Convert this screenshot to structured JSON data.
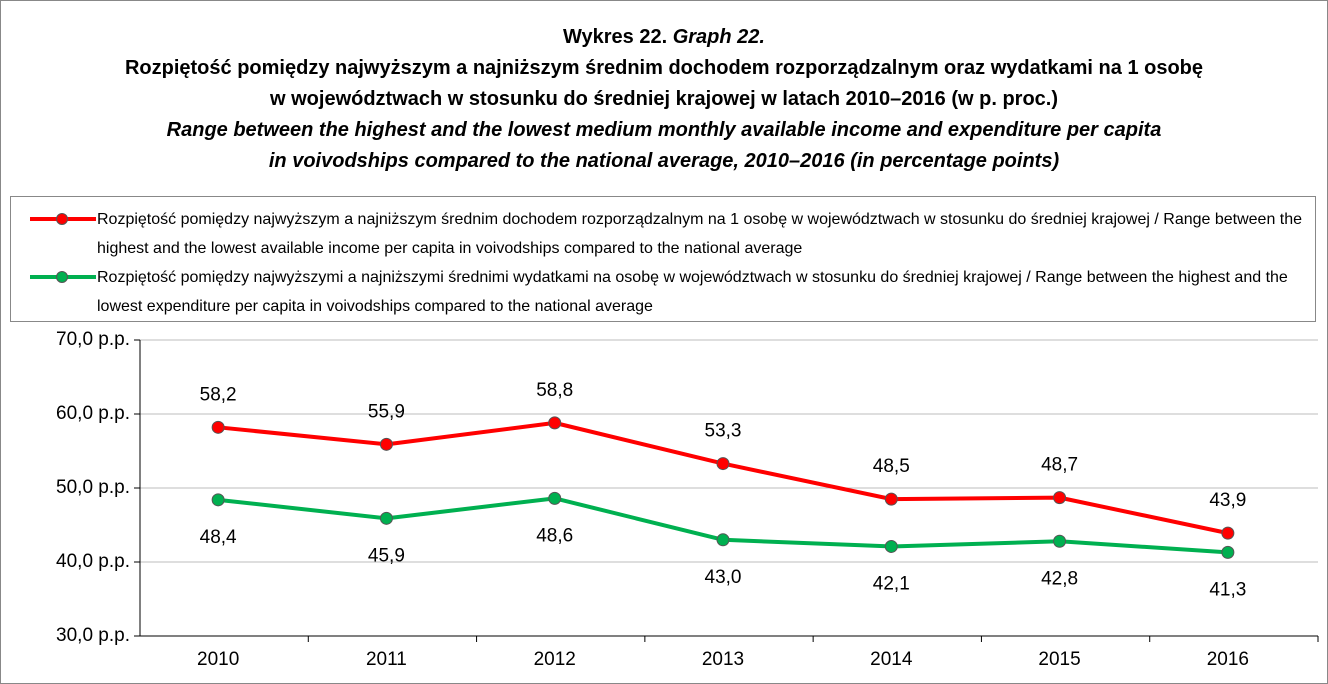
{
  "chart_data": {
    "type": "line",
    "title": {
      "number_pl": "Wykres 22.",
      "number_en": "Graph 22.",
      "pl_line1": "Rozpiętość pomiędzy najwyższym a najniższym średnim dochodem rozporządzalnym oraz wydatkami na 1 osobę",
      "pl_line2": "w województwach w stosunku do średniej krajowej w latach 2010–2016 (w p. proc.)",
      "en_line1": "Range between the highest and the lowest medium monthly available income and expenditure per capita",
      "en_line2": "in voivodships compared to the national average, 2010–2016 (in percentage points)"
    },
    "categories": [
      "2010",
      "2011",
      "2012",
      "2013",
      "2014",
      "2015",
      "2016"
    ],
    "series": [
      {
        "name": "Rozpiętość pomiędzy najwyższym a najniższym średnim dochodem rozporządzalnym na 1 osobę w województwach w stosunku do średniej krajowej / Range between the highest and the lowest available income per capita in voivodships compared to the national average",
        "color": "#ff0000",
        "label_position": "above",
        "values": [
          58.2,
          55.9,
          58.8,
          53.3,
          48.5,
          48.7,
          43.9
        ],
        "value_labels": [
          "58,2",
          "55,9",
          "58,8",
          "53,3",
          "48,5",
          "48,7",
          "43,9"
        ]
      },
      {
        "name": "Rozpiętość pomiędzy najwyższymi a najniższymi średnimi wydatkami na osobę w województwach w stosunku do średniej krajowej / Range between the highest and the lowest expenditure per capita in voivodships compared to the national average",
        "color": "#00b050",
        "label_position": "below",
        "values": [
          48.4,
          45.9,
          48.6,
          43.0,
          42.1,
          42.8,
          41.3
        ],
        "value_labels": [
          "48,4",
          "45,9",
          "48,6",
          "43,0",
          "42,1",
          "42,8",
          "41,3"
        ]
      }
    ],
    "ylim": [
      30,
      70
    ],
    "yticks": [
      {
        "value": 30,
        "label": "30,0 p.p."
      },
      {
        "value": 40,
        "label": "40,0 p.p."
      },
      {
        "value": 50,
        "label": "50,0 p.p."
      },
      {
        "value": 60,
        "label": "60,0 p.p."
      },
      {
        "value": 70,
        "label": "70,0 p.p."
      }
    ],
    "grid": true
  }
}
